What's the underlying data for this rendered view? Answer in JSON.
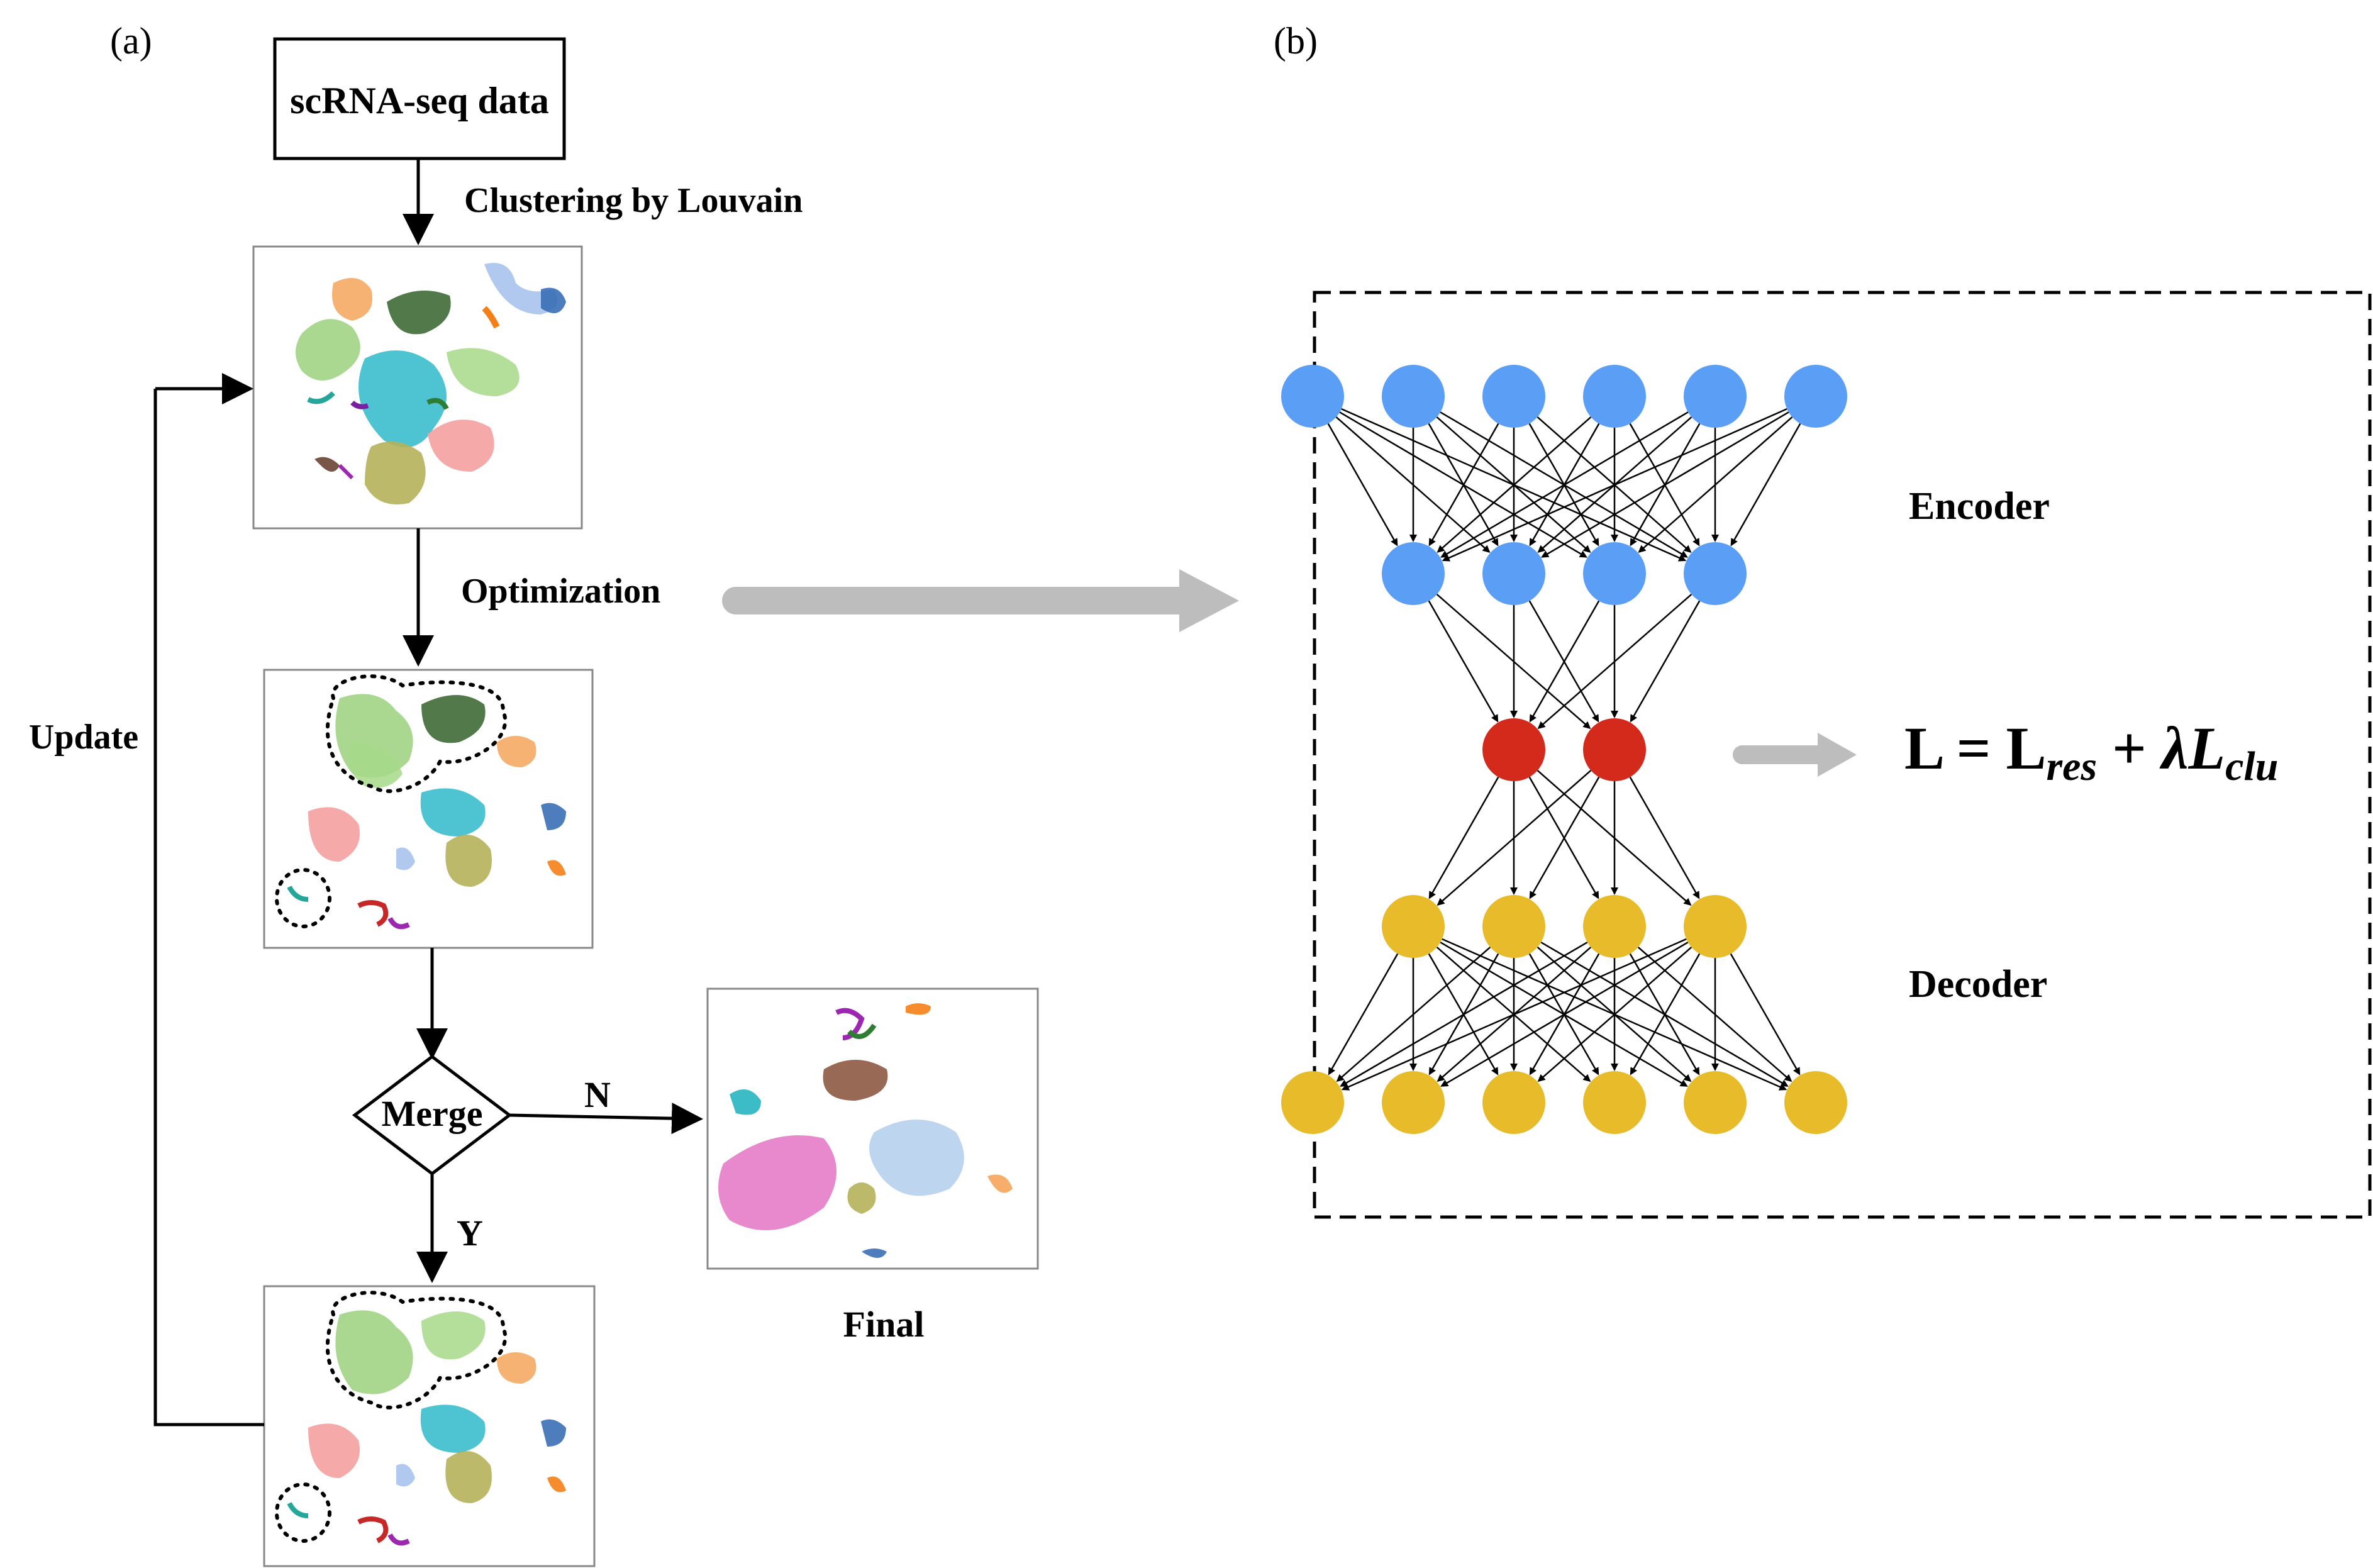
{
  "panel_a": {
    "label": "(a)",
    "input_box": "scRNA-seq data",
    "step_cluster": "Clustering by Louvain",
    "step_optimize": "Optimization",
    "update_label": "Update",
    "decision": "Merge",
    "branch_no": "N",
    "branch_yes": "Y",
    "final_label": "Final"
  },
  "panel_b": {
    "label": "(b)",
    "encoder_label": "Encoder",
    "decoder_label": "Decoder",
    "loss": {
      "lhs": "L",
      "eq": " = ",
      "term1": "L",
      "term1_sub": "res",
      "plus": " + ",
      "lambda": "λ",
      "term2": "L",
      "term2_sub": "clu"
    },
    "layers": [
      {
        "role": "input",
        "nodes": 6,
        "color": "#5b9ef5"
      },
      {
        "role": "encoder-hidden",
        "nodes": 4,
        "color": "#5b9ef5"
      },
      {
        "role": "latent",
        "nodes": 2,
        "color": "#d42a1c"
      },
      {
        "role": "decoder-hidden",
        "nodes": 4,
        "color": "#e8bb2a"
      },
      {
        "role": "output",
        "nodes": 6,
        "color": "#e8bb2a"
      }
    ]
  },
  "colors": {
    "encoder": "#5b9ef5",
    "latent": "#d42a1c",
    "decoder": "#e8bb2a",
    "arrow_gray": "#bdbdbd"
  },
  "icons": {
    "cluster_plots": "umap-scatter-plot",
    "flow_arrows": "arrow-icon"
  }
}
